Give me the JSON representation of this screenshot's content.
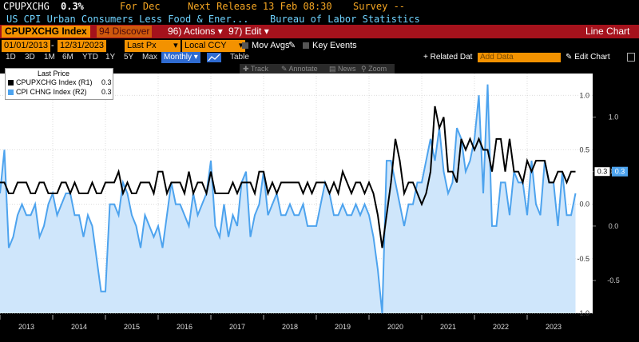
{
  "header": {
    "ticker": "CPUPXCHG",
    "value": "0.3%",
    "period": "For Dec",
    "next_release": "Next Release 13 Feb 08:30",
    "survey": "Survey --",
    "title": "US CPI Urban Consumers Less Food & Ener...",
    "source": "Bureau of Labor Statistics"
  },
  "menu": {
    "index_label": "CPUPXCHG Index",
    "discover": "94 Discover",
    "actions": "96) Actions",
    "edit": "97) Edit",
    "chart_type": "Line Chart"
  },
  "controls": {
    "start_date": "01/01/2013",
    "end_date": "12/31/2023",
    "price_field": "Last Px",
    "currency": "Local CCY",
    "mov_avgs": "Mov Avgs",
    "key_events": "Key Events"
  },
  "toolbar": {
    "tabs": [
      "1D",
      "3D",
      "1M",
      "6M",
      "YTD",
      "1Y",
      "5Y",
      "Max"
    ],
    "frequency": "Monthly",
    "table": "Table",
    "related": "+ Related Dat",
    "add_data": "Add Data",
    "edit_chart": "Edit Chart",
    "track": "Track",
    "annotate": "Annotate",
    "news": "News",
    "zoom": "Zoom"
  },
  "legend": {
    "title": "Last Price",
    "items": [
      {
        "label": "CPUPXCHG Index (R1)",
        "value": "0.3",
        "color": "#000000"
      },
      {
        "label": "CPI CHNG Index (R2)",
        "value": "0.3",
        "color": "#4da3ee"
      }
    ]
  },
  "chart_data": {
    "type": "line",
    "x_ticks": [
      "2013",
      "2014",
      "2015",
      "2016",
      "2017",
      "2018",
      "2019",
      "2020",
      "2021",
      "2022",
      "2023"
    ],
    "y_ticks_left": [
      "1.0",
      "0.5",
      "0.0",
      "-0.5",
      "-1.0"
    ],
    "y_ticks_right": [
      "1.0",
      "0.5",
      "0.0",
      "-0.5"
    ],
    "last_value_labels": [
      "0.3",
      "0.3"
    ],
    "start_month": "2013-01",
    "series": [
      {
        "name": "CPUPXCHG Index (R1)",
        "color": "#000000",
        "values": [
          0.2,
          0.2,
          0.1,
          0.1,
          0.2,
          0.2,
          0.2,
          0.1,
          0.1,
          0.2,
          0.2,
          0.1,
          0.1,
          0.1,
          0.2,
          0.2,
          0.1,
          0.2,
          0.1,
          0.1,
          0.1,
          0.2,
          0.1,
          0.1,
          0.2,
          0.2,
          0.2,
          0.3,
          0.1,
          0.2,
          0.1,
          0.1,
          0.2,
          0.2,
          0.2,
          0.1,
          0.3,
          0.3,
          0.1,
          0.2,
          0.2,
          0.2,
          0.1,
          0.3,
          0.1,
          0.2,
          0.2,
          0.1,
          0.3,
          0.1,
          0.1,
          0.1,
          0.1,
          0.2,
          0.1,
          0.2,
          0.2,
          0.2,
          0.1,
          0.3,
          0.3,
          0.1,
          0.2,
          0.1,
          0.2,
          0.2,
          0.2,
          0.2,
          0.2,
          0.1,
          0.2,
          0.1,
          0.2,
          0.2,
          0.2,
          0.1,
          0.2,
          0.1,
          0.3,
          0.2,
          0.1,
          0.2,
          0.2,
          0.1,
          0.2,
          0.1,
          -0.1,
          -0.4,
          -0.1,
          0.2,
          0.6,
          0.4,
          0.1,
          0.2,
          0.2,
          0.1,
          0.0,
          0.1,
          0.3,
          0.9,
          0.7,
          0.8,
          0.3,
          0.3,
          0.2,
          0.6,
          0.5,
          0.6,
          0.5,
          0.6,
          0.5,
          0.5,
          0.3,
          0.6,
          0.6,
          0.3,
          0.6,
          0.3,
          0.3,
          0.2,
          0.4,
          0.3,
          0.4,
          0.4,
          0.4,
          0.2,
          0.2,
          0.3,
          0.3,
          0.2,
          0.3,
          0.3
        ]
      },
      {
        "name": "CPI CHNG Index (R2)",
        "color": "#4da3ee",
        "values": [
          0.3,
          0.7,
          -0.2,
          -0.1,
          0.1,
          0.2,
          0.1,
          0.1,
          0.2,
          -0.1,
          0.0,
          0.2,
          0.3,
          0.1,
          0.2,
          0.3,
          0.3,
          0.1,
          0.1,
          -0.1,
          0.1,
          0.0,
          -0.3,
          -0.6,
          -0.6,
          0.2,
          0.2,
          0.1,
          0.4,
          0.3,
          0.1,
          0.0,
          -0.2,
          0.1,
          0.0,
          -0.1,
          0.0,
          -0.2,
          0.1,
          0.4,
          0.2,
          0.2,
          0.1,
          0.0,
          0.3,
          0.1,
          0.2,
          0.3,
          0.6,
          0.0,
          -0.1,
          0.2,
          -0.1,
          0.1,
          0.0,
          0.4,
          0.5,
          -0.1,
          0.1,
          0.2,
          0.5,
          0.1,
          0.2,
          0.3,
          0.1,
          0.1,
          0.2,
          0.1,
          0.1,
          0.2,
          0.0,
          0.0,
          0.0,
          0.2,
          0.4,
          0.3,
          0.1,
          0.1,
          0.2,
          0.1,
          0.1,
          0.2,
          0.1,
          0.2,
          0.1,
          -0.1,
          -0.4,
          -0.8,
          0.6,
          0.6,
          0.4,
          0.2,
          0.0,
          0.2,
          0.2,
          0.4,
          0.4,
          0.6,
          0.8,
          0.6,
          0.9,
          0.5,
          0.3,
          0.4,
          0.9,
          0.8,
          0.5,
          0.6,
          0.8,
          1.2,
          0.3,
          1.3,
          0.0,
          0.0,
          0.4,
          0.4,
          0.1,
          0.5,
          0.4,
          0.4,
          0.1,
          0.6,
          0.2,
          0.1,
          0.6,
          0.4,
          0.4,
          0.0,
          0.5,
          0.1,
          0.1,
          0.3
        ]
      }
    ],
    "ylim_left": [
      -1.0,
      1.2
    ],
    "ylim_right": [
      -0.8,
      1.4
    ],
    "grid": true
  }
}
